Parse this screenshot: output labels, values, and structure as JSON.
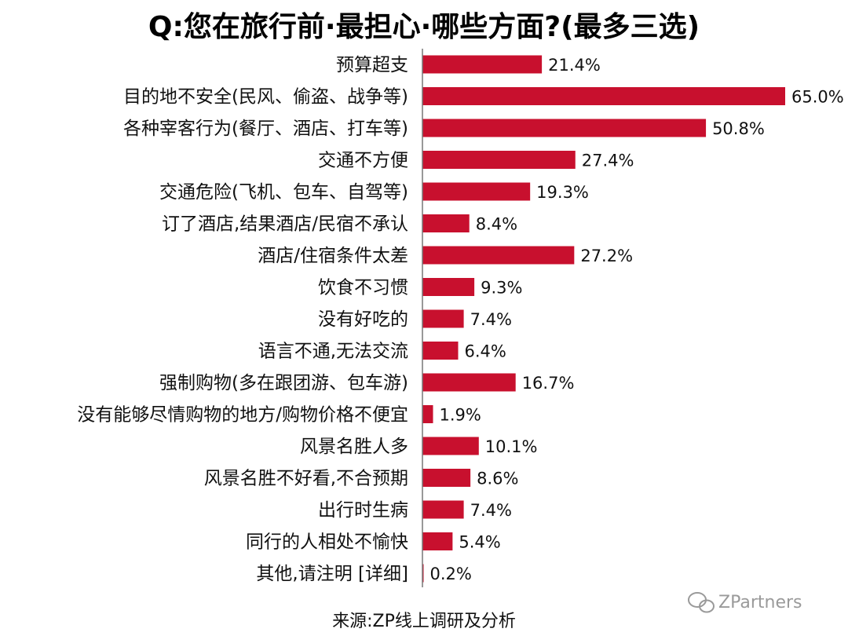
{
  "chart_data": {
    "type": "bar",
    "orientation": "horizontal",
    "title": "Q:您在旅行前·最担心·哪些方面?(最多三选)",
    "categories": [
      "预算超支",
      "目的地不安全(民风、偷盗、战争等)",
      "各种宰客行为(餐厅、酒店、打车等)",
      "交通不方便",
      "交通危险(飞机、包车、自驾等)",
      "订了酒店,结果酒店/民宿不承认",
      "酒店/住宿条件太差",
      "饮食不习惯",
      "没有好吃的",
      "语言不通,无法交流",
      "强制购物(多在跟团游、包车游)",
      "没有能够尽情购物的地方/购物价格不便宜",
      "风景名胜人多",
      "风景名胜不好看,不合预期",
      "出行时生病",
      "同行的人相处不愉快",
      "其他,请注明 [详细]"
    ],
    "values": [
      21.4,
      65.0,
      50.8,
      27.4,
      19.3,
      8.4,
      27.2,
      9.3,
      7.4,
      6.4,
      16.7,
      1.9,
      10.1,
      8.6,
      7.4,
      5.4,
      0.2
    ],
    "value_labels": [
      "21.4%",
      "65.0%",
      "50.8%",
      "27.4%",
      "19.3%",
      "8.4%",
      "27.2%",
      "9.3%",
      "7.4%",
      "6.4%",
      "16.7%",
      "1.9%",
      "10.1%",
      "8.6%",
      "7.4%",
      "5.4%",
      "0.2%"
    ],
    "xlim": [
      0,
      65
    ],
    "grid": false,
    "legend": "none",
    "bar_color": "#c8102e"
  },
  "source_note": "来源:ZP线上调研及分析",
  "watermark": "ZPartners",
  "watermark_icon": "wechat-icon"
}
